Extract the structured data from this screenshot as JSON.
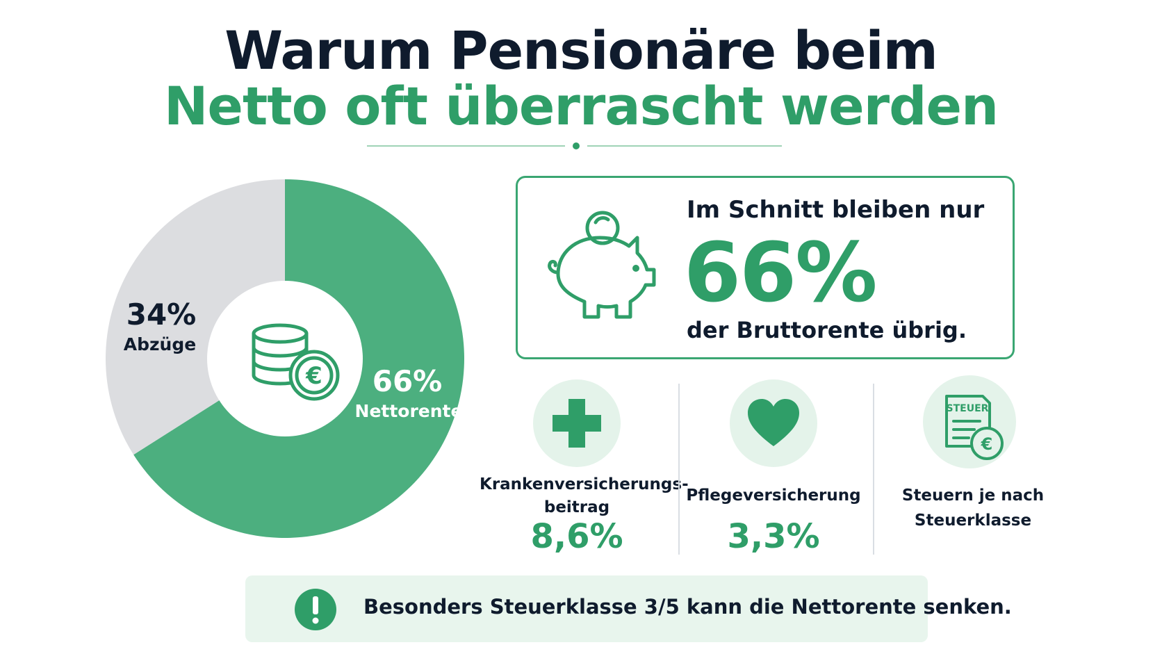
{
  "title": {
    "line1": "Warum Pensionäre beim",
    "line2": "Netto oft überrascht werden"
  },
  "colors": {
    "green": "#2f9e68",
    "green_light": "#4caf7f",
    "grey": "#dcdde0",
    "dark": "#0f1b2d",
    "pale_green": "#e4f3ea"
  },
  "chart_data": {
    "type": "pie",
    "slices": [
      {
        "label": "Nettorente",
        "value": 66,
        "value_label": "66%",
        "color": "#4caf7f"
      },
      {
        "label": "Abzüge",
        "value": 34,
        "value_label": "34%",
        "color": "#dcdde0"
      }
    ],
    "center_icon": "coins-euro-icon"
  },
  "highlight": {
    "icon": "piggy-bank-icon",
    "line1": "Im Schnitt bleiben nur",
    "big_value": "66%",
    "line3": "der Bruttorente übrig."
  },
  "factors": [
    {
      "icon": "medical-cross-icon",
      "label_lines": [
        "Krankenversicherungs-",
        "beitrag"
      ],
      "value": "8,6%"
    },
    {
      "icon": "heart-icon",
      "label_lines": [
        "Pflegeversicherung"
      ],
      "value": "3,3%"
    },
    {
      "icon": "tax-document-icon",
      "icon_text": "STEUER",
      "label_lines": [
        "Steuern je nach",
        "Steuerklasse"
      ],
      "value": ""
    }
  ],
  "note": {
    "icon": "exclamation-icon",
    "text": "Besonders Steuerklasse 3/5 kann die Nettorente senken."
  }
}
